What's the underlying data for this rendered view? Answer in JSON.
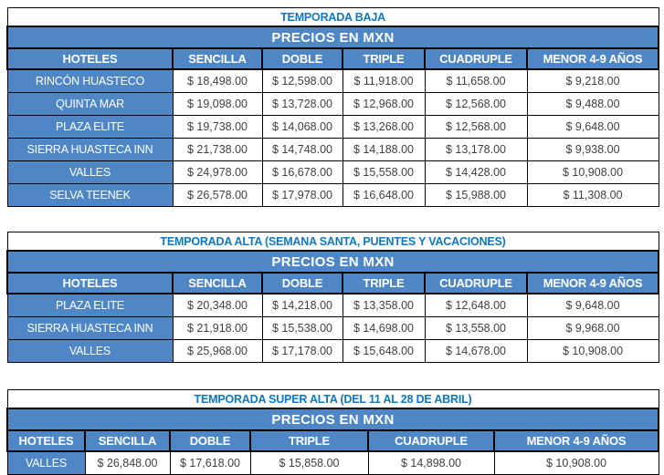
{
  "colors": {
    "header_fill": "#4e86c6",
    "title_text": "#0d78c4",
    "header_text": "#ffffff",
    "price_text": "#3f3f3f",
    "border": "#000000"
  },
  "tables": [
    {
      "title": "TEMPORADA BAJA",
      "banner": "PRECIOS EN MXN",
      "columns": [
        "HOTELES",
        "SENCILLA",
        "DOBLE",
        "TRIPLE",
        "CUADRUPLE",
        "MENOR 4-9 AÑOS"
      ],
      "rows": [
        {
          "hotel": "RINCÓN HUASTECO",
          "prices": [
            "$ 18,498.00",
            "$ 12,598.00",
            "$ 11,918.00",
            "$ 11,658.00",
            "$ 9,218.00"
          ]
        },
        {
          "hotel": "QUINTA MAR",
          "prices": [
            "$ 19,098.00",
            "$ 13,728.00",
            "$ 12,968.00",
            "$ 12,568.00",
            "$ 9,488.00"
          ]
        },
        {
          "hotel": "PLAZA ELITE",
          "prices": [
            "$ 19,738.00",
            "$ 14,068.00",
            "$ 13,268.00",
            "$ 12,568.00",
            "$ 9,648.00"
          ]
        },
        {
          "hotel": "SIERRA HUASTECA INN",
          "prices": [
            "$ 21,738.00",
            "$ 14,748.00",
            "$ 14,188.00",
            "$ 13,178.00",
            "$ 9,938.00"
          ]
        },
        {
          "hotel": "VALLES",
          "prices": [
            "$ 24,978.00",
            "$ 16,678.00",
            "$ 15,558.00",
            "$ 14,428.00",
            "$ 10,908.00"
          ]
        },
        {
          "hotel": "SELVA TEENEK",
          "prices": [
            "$ 26,578.00",
            "$ 17,978.00",
            "$ 16,648.00",
            "$ 15,988.00",
            "$ 11,308.00"
          ]
        }
      ]
    },
    {
      "title": "TEMPORADA ALTA (SEMANA SANTA, PUENTES Y VACACIONES)",
      "banner": "PRECIOS EN MXN",
      "columns": [
        "HOTELES",
        "SENCILLA",
        "DOBLE",
        "TRIPLE",
        "CUADRUPLE",
        "MENOR 4-9 AÑOS"
      ],
      "rows": [
        {
          "hotel": "PLAZA ELITE",
          "prices": [
            "$ 20,348.00",
            "$ 14,218.00",
            "$ 13,358.00",
            "$ 12,648.00",
            "$ 9,648.00"
          ]
        },
        {
          "hotel": "SIERRA HUASTECA INN",
          "prices": [
            "$ 21,918.00",
            "$ 15,538.00",
            "$ 14,698.00",
            "$ 13,558.00",
            "$ 9,968.00"
          ]
        },
        {
          "hotel": "VALLES",
          "prices": [
            "$ 25,968.00",
            "$ 17,178.00",
            "$ 15,648.00",
            "$ 14,678.00",
            "$ 10,908.00"
          ]
        }
      ]
    },
    {
      "title": "TEMPORADA SUPER ALTA (DEL 11 AL 28 DE ABRIL)",
      "banner": "PRECIOS EN MXN",
      "columns": [
        "HOTELES",
        "SENCILLA",
        "DOBLE",
        "TRIPLE",
        "CUADRUPLE",
        "MENOR 4-9 AÑOS"
      ],
      "rows": [
        {
          "hotel": "VALLES",
          "prices": [
            "$ 26,848.00",
            "$ 17,618.00",
            "$ 15,858.00",
            "$ 14,898.00",
            "$ 10,908.00"
          ]
        }
      ]
    }
  ]
}
